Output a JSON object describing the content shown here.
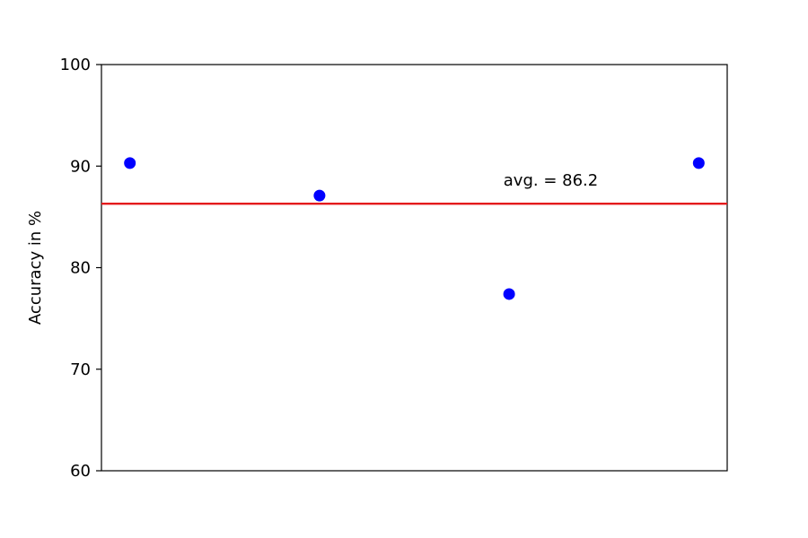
{
  "chart_data": {
    "type": "scatter",
    "title": "",
    "xlabel": "",
    "ylabel": "Accuracy in %",
    "ylim": [
      60,
      100
    ],
    "yticks": [
      60,
      70,
      80,
      90,
      100
    ],
    "x_ticks_visible": false,
    "grid": false,
    "legend": "none",
    "x": [
      1,
      2,
      3,
      4
    ],
    "series": [
      {
        "values": [
          90.3,
          87.1,
          77.4,
          90.3
        ],
        "color": "#0000ff",
        "marker": "circle"
      }
    ],
    "reference_line": {
      "value": 86.3,
      "color": "#e41a1c"
    },
    "annotation": {
      "text": "avg. = 86.2",
      "x": 2.97,
      "y": 88.6
    }
  }
}
